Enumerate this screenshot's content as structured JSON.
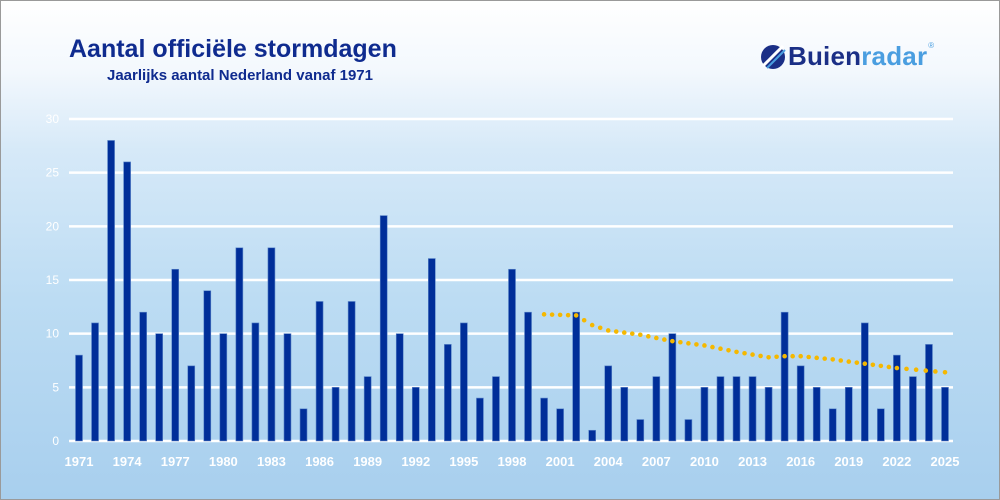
{
  "header": {
    "title": "Aantal officiële stormdagen",
    "subtitle": "Jaarlijks aantal Nederland vanaf 1971"
  },
  "logo": {
    "text_main": "Buien",
    "text_accent": "radar",
    "registered": "®",
    "icon": "buienradar-logo-icon"
  },
  "colors": {
    "bar": "#002e99",
    "trend": "#f5b800",
    "grid": "#ffffff",
    "title": "#0f2b8f"
  },
  "chart_data": {
    "type": "bar",
    "title": "Aantal officiële stormdagen",
    "subtitle": "Jaarlijks aantal Nederland vanaf 1971",
    "xlabel": "",
    "ylabel": "",
    "ylim": [
      0,
      30
    ],
    "yticks": [
      0,
      5,
      10,
      15,
      20,
      25,
      30
    ],
    "xtick_labels": [
      "1971",
      "1974",
      "1977",
      "1980",
      "1983",
      "1986",
      "1989",
      "1992",
      "1995",
      "1998",
      "2001",
      "2004",
      "2007",
      "2010",
      "2013",
      "2016",
      "2019",
      "2022",
      "2025"
    ],
    "grid": true,
    "categories": [
      1971,
      1972,
      1973,
      1974,
      1975,
      1976,
      1977,
      1978,
      1979,
      1980,
      1981,
      1982,
      1983,
      1984,
      1985,
      1986,
      1987,
      1988,
      1989,
      1990,
      1991,
      1992,
      1993,
      1994,
      1995,
      1996,
      1997,
      1998,
      1999,
      2000,
      2001,
      2002,
      2003,
      2004,
      2005,
      2006,
      2007,
      2008,
      2009,
      2010,
      2011,
      2012,
      2013,
      2014,
      2015,
      2016,
      2017,
      2018,
      2019,
      2020,
      2021,
      2022,
      2023,
      2024,
      2025
    ],
    "values": [
      8,
      11,
      28,
      26,
      12,
      10,
      16,
      7,
      14,
      10,
      18,
      11,
      18,
      10,
      3,
      13,
      5,
      13,
      6,
      21,
      10,
      5,
      17,
      9,
      11,
      4,
      6,
      16,
      12,
      4,
      3,
      12,
      1,
      7,
      5,
      2,
      6,
      10,
      2,
      5,
      6,
      6,
      6,
      5,
      12,
      7,
      5,
      3,
      5,
      11,
      3,
      8,
      6,
      9,
      5
    ],
    "trend": {
      "name": "trend (dotted)",
      "x": [
        2000,
        2002,
        2003,
        2004,
        2006,
        2008,
        2010,
        2012,
        2014,
        2015,
        2016,
        2018,
        2020,
        2022,
        2025
      ],
      "y": [
        11.8,
        11.7,
        10.8,
        10.3,
        9.9,
        9.3,
        8.9,
        8.3,
        7.8,
        7.9,
        7.9,
        7.6,
        7.2,
        6.8,
        6.4
      ]
    }
  }
}
